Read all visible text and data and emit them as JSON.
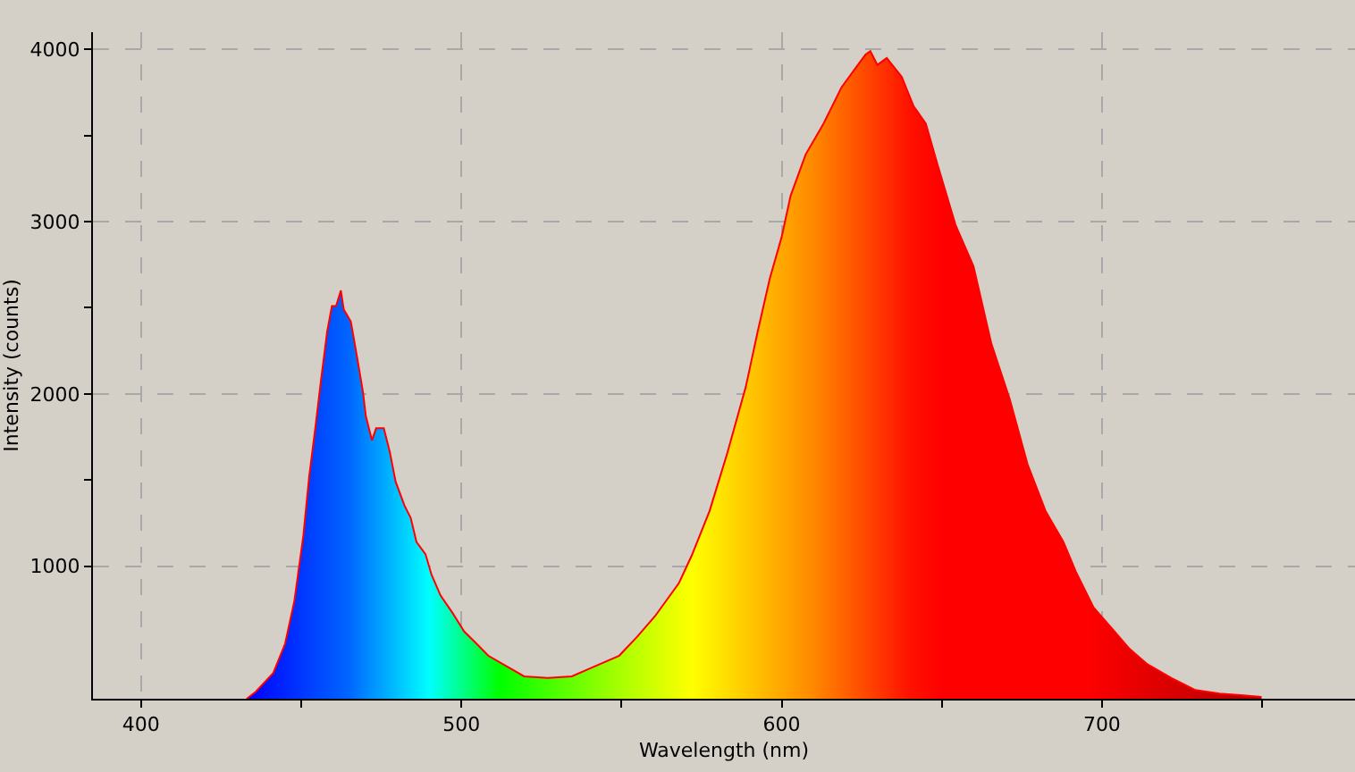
{
  "chart_data": {
    "type": "area",
    "xlabel": "Wavelength (nm)",
    "ylabel": "Intensity (counts)",
    "x": [
      433,
      435.8,
      441.3,
      445,
      447.9,
      450.7,
      452.5,
      454.4,
      456.2,
      458.1,
      459.6,
      460.9,
      462.4,
      463.3,
      465.5,
      467.4,
      469.3,
      470.2,
      472.1,
      473.4,
      475.8,
      477.7,
      479.5,
      482.3,
      484.2,
      486.0,
      488.8,
      490.7,
      493.5,
      497.2,
      500.9,
      504.7,
      508.4,
      514,
      519.6,
      527.0,
      534.5,
      541.9,
      549.3,
      554.9,
      560.5,
      567.9,
      571.9,
      577.5,
      583.1,
      588.8,
      592.5,
      596.3,
      600,
      602.8,
      607.5,
      613.1,
      618.7,
      623.4,
      626.2,
      627.7,
      629.9,
      632.8,
      637.5,
      641.2,
      645.0,
      648.7,
      654.3,
      659.9,
      665.5,
      671.2,
      676.8,
      682.4,
      688.0,
      691.8,
      697.4,
      703.0,
      708.6,
      714.2,
      721.7,
      729.2,
      736.7,
      744.2,
      749.8
    ],
    "series": [
      {
        "color": "#ff0000",
        "values": [
          230,
          270,
          380,
          550,
          800,
          1180,
          1520,
          1800,
          2080,
          2360,
          2510,
          2510,
          2600,
          2490,
          2420,
          2220,
          2010,
          1870,
          1730,
          1800,
          1800,
          1660,
          1490,
          1350,
          1280,
          1140,
          1070,
          950,
          830,
          730,
          620,
          550,
          480,
          420,
          360,
          350,
          360,
          420,
          480,
          590,
          710,
          900,
          1060,
          1320,
          1660,
          2040,
          2360,
          2670,
          2910,
          3150,
          3390,
          3570,
          3780,
          3900,
          3970,
          3990,
          3910,
          3950,
          3840,
          3670,
          3570,
          3330,
          2980,
          2740,
          2290,
          1970,
          1590,
          1320,
          1140,
          970,
          760,
          640,
          520,
          430,
          350,
          280,
          260,
          250,
          240
        ]
      }
    ],
    "xlim": [
      385,
      779
    ],
    "ylim": [
      230,
      4100
    ],
    "xticks": [
      400,
      {
        "value": 450,
        "label": null
      },
      500,
      {
        "value": 550,
        "label": null
      },
      600,
      {
        "value": 650,
        "label": null
      },
      700,
      {
        "value": 750,
        "label": null
      }
    ],
    "yticks": [
      1000,
      {
        "value": 1500,
        "label": null
      },
      2000,
      {
        "value": 2500,
        "label": null
      },
      3000,
      {
        "value": 3500,
        "label": null
      },
      4000
    ],
    "grid": true
  }
}
